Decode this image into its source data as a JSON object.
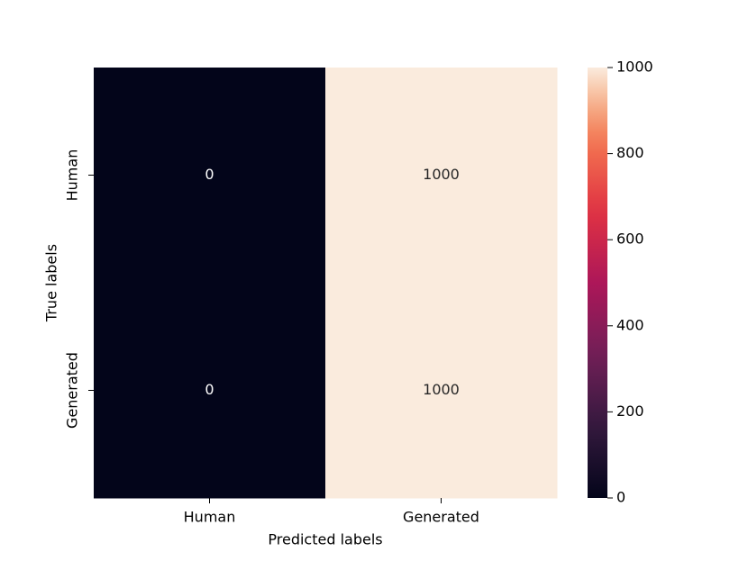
{
  "chart_data": {
    "type": "heatmap",
    "x_categories": [
      "Human",
      "Generated"
    ],
    "y_categories": [
      "Human",
      "Generated"
    ],
    "values": [
      [
        0,
        1000
      ],
      [
        0,
        1000
      ]
    ],
    "xlabel": "Predicted labels",
    "ylabel": "True labels",
    "colormap": "rocket",
    "clim": [
      0,
      1000
    ],
    "colorbar_ticks": [
      0,
      200,
      400,
      600,
      800,
      1000
    ]
  }
}
